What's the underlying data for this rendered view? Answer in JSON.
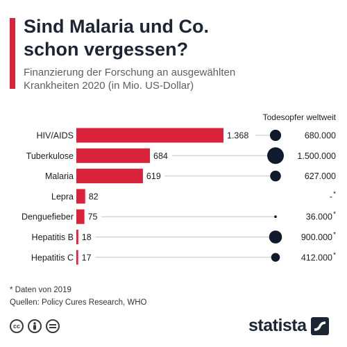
{
  "header": {
    "title_line1": "Sind Malaria und Co.",
    "title_line2": "schon vergessen?",
    "subtitle_line1": "Finanzierung der Forschung an ausgewählten",
    "subtitle_line2": "Krankheiten 2020 (in Mio. US-Dollar)"
  },
  "chart_data": {
    "type": "bar",
    "orientation": "horizontal",
    "categories": [
      "HIV/AIDS",
      "Tuberkulose",
      "Malaria",
      "Lepra",
      "Denguefieber",
      "Hepatitis B",
      "Hepatitis C"
    ],
    "series": [
      {
        "values": [
          1368,
          684,
          619,
          82,
          75,
          18,
          17
        ]
      }
    ],
    "value_labels": [
      "1.368",
      "684",
      "619",
      "82",
      "75",
      "18",
      "17"
    ],
    "deaths": {
      "column_label": "Todesopfer weltweit",
      "values": [
        680000,
        1500000,
        627000,
        null,
        36000,
        900000,
        412000
      ],
      "labels": [
        "680.000",
        "1.500.000",
        "627.000",
        "-",
        "36.000",
        "900.000",
        "412.000"
      ],
      "asterisk": [
        false,
        false,
        false,
        true,
        true,
        true,
        true
      ]
    },
    "bar_color": "#d8233a",
    "bubble_color": "#0f1a2c"
  },
  "footer": {
    "note": "* Daten von 2019",
    "sources": "Quellen: Policy Cures Research, WHO",
    "license_icons": [
      "cc-icon",
      "person-icon",
      "equals-icon"
    ],
    "brand": "statista"
  }
}
